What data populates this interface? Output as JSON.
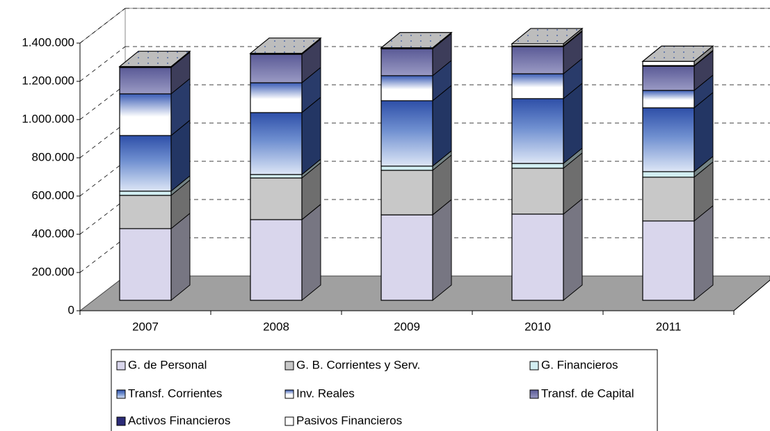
{
  "chart_data": {
    "type": "bar3d_stacked",
    "categories": [
      "2007",
      "2008",
      "2009",
      "2010",
      "2011"
    ],
    "series": [
      {
        "name": "G. de Personal",
        "color": "#d9d6ec",
        "values": [
          375000,
          422000,
          447000,
          451000,
          415000
        ]
      },
      {
        "name": "G. B. Corrientes y Serv.",
        "color": "#c8c8c8",
        "values": [
          174000,
          218000,
          233000,
          240000,
          229000
        ]
      },
      {
        "name": "G. Financieros",
        "color": "#d2eef2",
        "values": [
          22000,
          18000,
          22000,
          25000,
          29000
        ]
      },
      {
        "name": "Transf. Corrientes",
        "color": "#3f63b5",
        "values": [
          291000,
          324000,
          342000,
          339000,
          334000
        ]
      },
      {
        "name": "Inv. Reales",
        "color": "#4a6cc0",
        "values": [
          218000,
          156000,
          131000,
          130000,
          91000
        ]
      },
      {
        "name": "Transf. de Capital",
        "color": "#6e6ea4",
        "values": [
          138000,
          149000,
          141000,
          142000,
          127000
        ]
      },
      {
        "name": "Activos Financieros",
        "color": "#2c2c78",
        "values": [
          3000,
          3000,
          3000,
          4000,
          3000
        ]
      },
      {
        "name": "Pasivos Financieros",
        "color": "#ffffff",
        "values": [
          2000,
          2000,
          2000,
          11000,
          22000
        ]
      }
    ],
    "ylim": [
      0,
      1400000
    ],
    "yticks": [
      0,
      {
        "value": 200000,
        "label": "200.000"
      },
      {
        "value": 400000,
        "label": "400.000"
      },
      {
        "value": 600000,
        "label": "600.000"
      },
      {
        "value": 800000,
        "label": "800.000"
      },
      {
        "value": 1000000,
        "label": "1.000.000"
      },
      {
        "value": 1200000,
        "label": "1.200.000"
      },
      {
        "value": 1400000,
        "label": "1.400.000"
      }
    ],
    "grid": true
  }
}
